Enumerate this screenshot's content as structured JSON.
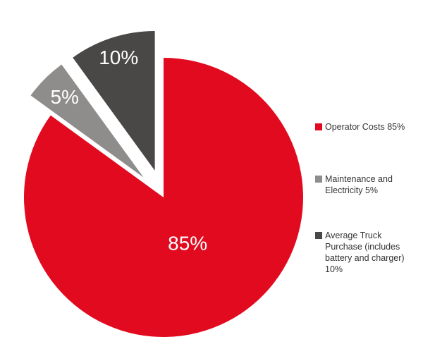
{
  "chart_data": {
    "type": "pie",
    "categories": [
      "Operator Costs 85%",
      "Maintenance and Electricity 5%",
      "Average Truck Purchase (includes battery and charger) 10%"
    ],
    "values": [
      85,
      5,
      10
    ],
    "labels": [
      "85%",
      "5%",
      "10%"
    ],
    "colors": [
      "#e20a1f",
      "#8f8d8b",
      "#4a4846"
    ],
    "exploded": [
      false,
      true,
      true
    ],
    "legend_position": "right",
    "title": ""
  },
  "legend": {
    "items": [
      {
        "label": "Operator Costs 85%",
        "color": "#e20a1f"
      },
      {
        "label": "Maintenance and Electricity 5%",
        "color": "#8f8d8b"
      },
      {
        "label": "Average Truck Purchase (includes battery and charger) 10%",
        "color": "#4a4846"
      }
    ]
  }
}
